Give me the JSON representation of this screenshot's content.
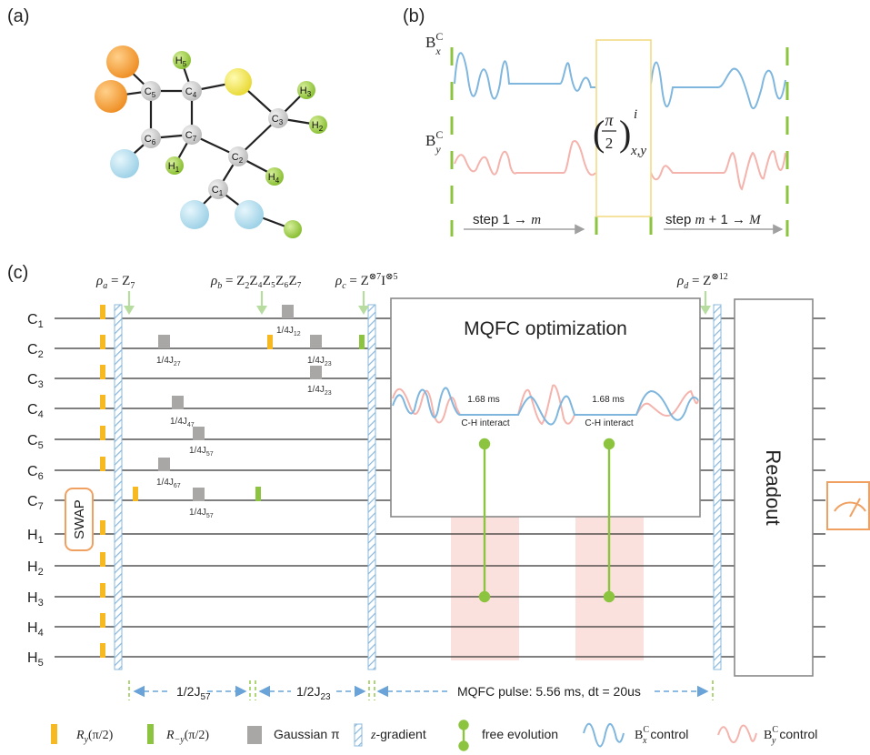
{
  "panels": {
    "a": "(a)",
    "b": "(b)",
    "c": "(c)"
  },
  "molecule": {
    "carbons": [
      {
        "main": "C",
        "sub": "1"
      },
      {
        "main": "C",
        "sub": "2"
      },
      {
        "main": "C",
        "sub": "3"
      },
      {
        "main": "C",
        "sub": "4"
      },
      {
        "main": "C",
        "sub": "5"
      },
      {
        "main": "C",
        "sub": "6"
      },
      {
        "main": "C",
        "sub": "7"
      }
    ],
    "hydrogens": [
      {
        "main": "H",
        "sub": "1"
      },
      {
        "main": "H",
        "sub": "2"
      },
      {
        "main": "H",
        "sub": "3"
      },
      {
        "main": "H",
        "sub": "4"
      },
      {
        "main": "H",
        "sub": "5"
      }
    ],
    "colors": {
      "carbon": "#c9c9c9",
      "hydrogen": "#9ccf3f",
      "sulfur": "#f2e64b",
      "orange": "#f4a036",
      "blue": "#a8d8ec"
    }
  },
  "panel_b": {
    "bx_label": {
      "main": "B",
      "sup": "C",
      "sub": "x"
    },
    "by_label": {
      "main": "B",
      "sup": "C",
      "sub": "y"
    },
    "pulse_label": {
      "frac_top": "π",
      "frac_bottom": "2",
      "sup": "i",
      "sub": "x,y"
    },
    "step1": {
      "prefix": "step 1 → ",
      "var": "m"
    },
    "step2": {
      "prefix": "step ",
      "var1": "m",
      "mid": " + 1 → ",
      "var2": "M"
    }
  },
  "panel_c": {
    "qubits": [
      {
        "main": "C",
        "sub": "1"
      },
      {
        "main": "C",
        "sub": "2"
      },
      {
        "main": "C",
        "sub": "3"
      },
      {
        "main": "C",
        "sub": "4"
      },
      {
        "main": "C",
        "sub": "5"
      },
      {
        "main": "C",
        "sub": "6"
      },
      {
        "main": "C",
        "sub": "7"
      },
      {
        "main": "H",
        "sub": "1"
      },
      {
        "main": "H",
        "sub": "2"
      },
      {
        "main": "H",
        "sub": "3"
      },
      {
        "main": "H",
        "sub": "4"
      },
      {
        "main": "H",
        "sub": "5"
      }
    ],
    "states": {
      "rho_a": {
        "name": "ρ",
        "sub": "a",
        "eq": " = Z",
        "eqsub": "7"
      },
      "rho_b": {
        "name": "ρ",
        "sub": "b",
        "eq": " = Z",
        "tail": "Z₄Z₅Z₆Z₇",
        "z2": "2"
      },
      "rho_c": {
        "name": "ρ",
        "sub": "c",
        "eq": " = Z",
        "sup1": "⊗7",
        "mid": "I",
        "sup2": "⊗5"
      },
      "rho_d": {
        "name": "ρ",
        "sub": "d",
        "eq": " = Z",
        "sup1": "⊗12"
      }
    },
    "coupling_labels": [
      {
        "main": "1/4J",
        "sub": "27"
      },
      {
        "main": "1/4J",
        "sub": "47"
      },
      {
        "main": "1/4J",
        "sub": "57"
      },
      {
        "main": "1/4J",
        "sub": "67"
      },
      {
        "main": "1/4J",
        "sub": "57"
      },
      {
        "main": "1/4J",
        "sub": "12"
      },
      {
        "main": "1/4J",
        "sub": "23"
      },
      {
        "main": "1/4J",
        "sub": "23"
      }
    ],
    "swap_label": "SWAP",
    "mqfc_title": "MQFC optimization",
    "interact_time_1": "1.68 ms",
    "interact_label_1": "C-H interact",
    "interact_time_2": "1.68 ms",
    "interact_label_2": "C-H interact",
    "readout_label": "Readout",
    "timing": {
      "t1": {
        "main": "1/2J",
        "sub": "57"
      },
      "t2": {
        "main": "1/2J",
        "sub": "23"
      },
      "t3": "MQFC pulse: 5.56 ms, dt = 20us"
    },
    "colors": {
      "orange_pulse": "#f6b922",
      "green_pulse": "#8cc43f",
      "gaussian": "#a9a6a6",
      "gradient": "#8ab8dc",
      "bx": "#7fb6de",
      "by": "#f4b3ac",
      "pink_region": "#fbe1dd",
      "arrow_green": "#b7dca0",
      "dash_blue": "#6aa3d8"
    }
  },
  "legend": {
    "ry": {
      "main": "R",
      "sub": "y",
      "arg": "(π/2)"
    },
    "rmy": {
      "main": "R",
      "sub": "−y",
      "arg": "(π/2)"
    },
    "gauss": "Gaussian π",
    "zgrad": {
      "var": "z",
      "rest": "-gradient"
    },
    "free": "free evolution",
    "bx": {
      "main": "B",
      "sup": "C",
      "sub": "x",
      "rest": " control"
    },
    "by": {
      "main": "B",
      "sup": "C",
      "sub": "y",
      "rest": " control"
    }
  }
}
